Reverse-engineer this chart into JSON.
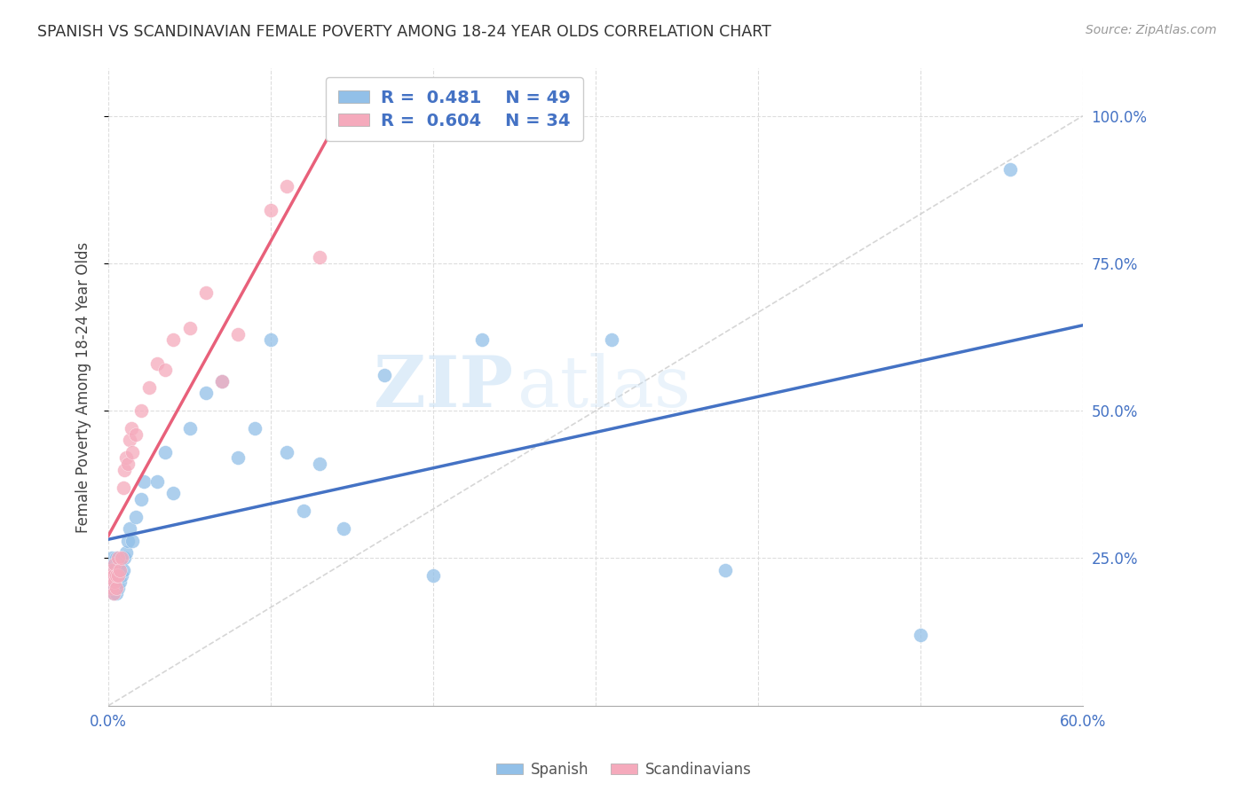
{
  "title": "SPANISH VS SCANDINAVIAN FEMALE POVERTY AMONG 18-24 YEAR OLDS CORRELATION CHART",
  "source": "Source: ZipAtlas.com",
  "ylabel": "Female Poverty Among 18-24 Year Olds",
  "xlim": [
    0.0,
    0.6
  ],
  "ylim": [
    0.0,
    1.08
  ],
  "R_spanish": 0.481,
  "N_spanish": 49,
  "R_scandinavian": 0.604,
  "N_scandinavian": 34,
  "spanish_color": "#92C0E8",
  "scandinavian_color": "#F5AABC",
  "trend_blue": "#4472C4",
  "trend_pink": "#E8607A",
  "legend_text_color": "#4472C4",
  "watermark_zip": "ZIP",
  "watermark_atlas": "atlas",
  "background_color": "#FFFFFF",
  "spanish_x": [
    0.001,
    0.001,
    0.002,
    0.002,
    0.002,
    0.003,
    0.003,
    0.003,
    0.003,
    0.004,
    0.004,
    0.004,
    0.005,
    0.005,
    0.005,
    0.006,
    0.006,
    0.007,
    0.007,
    0.008,
    0.009,
    0.01,
    0.011,
    0.012,
    0.013,
    0.015,
    0.017,
    0.02,
    0.022,
    0.03,
    0.035,
    0.04,
    0.05,
    0.06,
    0.07,
    0.08,
    0.09,
    0.1,
    0.11,
    0.12,
    0.13,
    0.145,
    0.17,
    0.2,
    0.23,
    0.31,
    0.38,
    0.5,
    0.555
  ],
  "spanish_y": [
    0.21,
    0.23,
    0.2,
    0.22,
    0.25,
    0.19,
    0.21,
    0.22,
    0.24,
    0.2,
    0.22,
    0.23,
    0.19,
    0.21,
    0.25,
    0.2,
    0.23,
    0.21,
    0.24,
    0.22,
    0.23,
    0.25,
    0.26,
    0.28,
    0.3,
    0.28,
    0.32,
    0.35,
    0.38,
    0.38,
    0.43,
    0.36,
    0.47,
    0.53,
    0.55,
    0.42,
    0.47,
    0.62,
    0.43,
    0.33,
    0.41,
    0.3,
    0.56,
    0.22,
    0.62,
    0.62,
    0.23,
    0.12,
    0.91
  ],
  "scandinavian_x": [
    0.001,
    0.002,
    0.002,
    0.003,
    0.003,
    0.004,
    0.004,
    0.005,
    0.005,
    0.006,
    0.006,
    0.007,
    0.008,
    0.009,
    0.01,
    0.011,
    0.012,
    0.013,
    0.014,
    0.015,
    0.017,
    0.02,
    0.025,
    0.03,
    0.035,
    0.04,
    0.05,
    0.06,
    0.07,
    0.08,
    0.1,
    0.11,
    0.13,
    0.155
  ],
  "scandinavian_y": [
    0.22,
    0.2,
    0.23,
    0.19,
    0.22,
    0.21,
    0.24,
    0.2,
    0.22,
    0.22,
    0.25,
    0.23,
    0.25,
    0.37,
    0.4,
    0.42,
    0.41,
    0.45,
    0.47,
    0.43,
    0.46,
    0.5,
    0.54,
    0.58,
    0.57,
    0.62,
    0.64,
    0.7,
    0.55,
    0.63,
    0.84,
    0.88,
    0.76,
    1.0
  ],
  "ref_line_x": [
    0.0,
    0.6
  ],
  "ref_line_y": [
    0.0,
    1.0
  ],
  "grid_color": "#DDDDDD",
  "spine_color": "#AAAAAA"
}
